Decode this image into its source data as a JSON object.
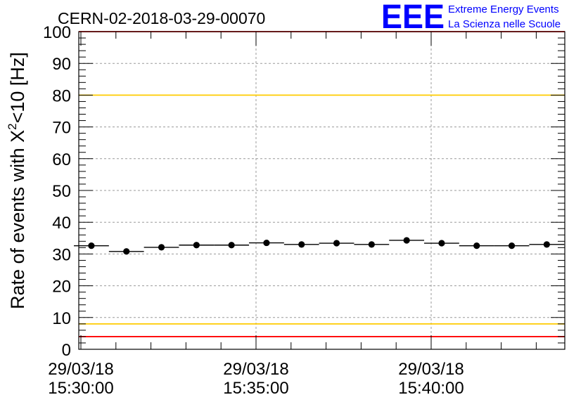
{
  "chart_data": {
    "type": "scatter",
    "title": "CERN-02-2018-03-29-00070",
    "ylabel_main": "Rate of events with X",
    "ylabel_sup": "2",
    "ylabel_tail": "<10 [Hz]",
    "xlabel": "",
    "ylim": [
      0,
      100
    ],
    "yticks": [
      0,
      10,
      20,
      30,
      40,
      50,
      60,
      70,
      80,
      90,
      100
    ],
    "xlim_min": [
      0,
      13.8
    ],
    "xticks": [
      {
        "min": 0,
        "date": "29/03/18",
        "time": "15:30:00"
      },
      {
        "min": 5,
        "date": "29/03/18",
        "time": "15:35:00"
      },
      {
        "min": 10,
        "date": "29/03/18",
        "time": "15:40:00"
      }
    ],
    "bin_width_min": 1.0,
    "series": [
      {
        "name": "rate",
        "x": [
          0.3,
          1.3,
          2.3,
          3.3,
          4.3,
          5.3,
          6.3,
          7.3,
          8.3,
          9.3,
          10.3,
          11.3,
          12.3,
          13.3
        ],
        "values": [
          32.6,
          30.8,
          32.1,
          32.8,
          32.8,
          33.5,
          33.0,
          33.4,
          33.0,
          34.3,
          33.4,
          32.6,
          32.6,
          33.0
        ]
      }
    ],
    "reference_lines": [
      {
        "name": "upper-red",
        "value": 100,
        "color": "#ff0000"
      },
      {
        "name": "upper-yellow",
        "value": 80,
        "color": "#ffcc00"
      },
      {
        "name": "lower-yellow",
        "value": 8,
        "color": "#ffcc00"
      },
      {
        "name": "lower-red",
        "value": 4,
        "color": "#ff0000"
      }
    ]
  },
  "logo": {
    "mark": "EEE",
    "line1": "Extreme Energy Events",
    "line2": "La Scienza nelle Scuole",
    "color": "#0000ff"
  },
  "colors": {
    "grid": "#9a9a9a",
    "marker": "#000000"
  }
}
